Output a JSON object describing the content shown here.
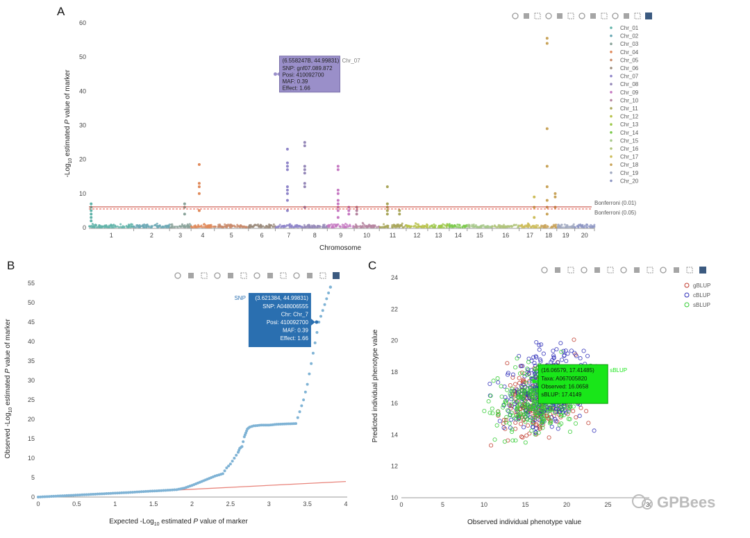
{
  "toolbar_icons": [
    "camera-icon",
    "zoom-icon",
    "pan-icon",
    "box-select-icon",
    "lasso-icon",
    "zoom-in-icon",
    "zoom-out-icon",
    "autoscale-icon",
    "home-icon",
    "spike-lines-icon",
    "hover-closest-icon",
    "hover-compare-icon",
    "plotly-logo-icon"
  ],
  "watermark": "GPBees",
  "colors": {
    "bonferroni_001": "#c0392b",
    "bonferroni_005": "#e74c3c",
    "tooltip_A": "#9a8fc9",
    "tooltip_B": "#2a6fb0",
    "tooltip_C": "#19e619",
    "qq_points": "#7fb3d5",
    "qq_line": "#e8837a"
  },
  "chart_data": [
    {
      "panel": "A",
      "type": "scatter",
      "subtype": "manhattan",
      "ylabel_prefix": "-Log",
      "ylabel_sub": "10",
      "ylabel_suffix": " estimated ",
      "ylabel_italic": "P",
      "ylabel_end": " value of marker",
      "xlabel": "Chromosome",
      "ylim": [
        0,
        60
      ],
      "yticks": [
        "0",
        "10",
        "20",
        "30",
        "40",
        "50",
        "60"
      ],
      "chromosomes": [
        "1",
        "2",
        "3",
        "4",
        "5",
        "6",
        "7",
        "8",
        "9",
        "10",
        "11",
        "12",
        "13",
        "14",
        "15",
        "16",
        "17",
        "18",
        "19",
        "20"
      ],
      "legend": [
        "Chr_01",
        "Chr_02",
        "Chr_03",
        "Chr_04",
        "Chr_05",
        "Chr_06",
        "Chr_07",
        "Chr_08",
        "Chr_09",
        "Chr_10",
        "Chr_11",
        "Chr_12",
        "Chr_13",
        "Chr_14",
        "Chr_15",
        "Chr_16",
        "Chr_17",
        "Chr_18",
        "Chr_19",
        "Chr_20"
      ],
      "legend_colors": [
        "#5fb3a9",
        "#6aa8b4",
        "#8aa39a",
        "#e0895a",
        "#c98a6a",
        "#9a8a7a",
        "#8f85c9",
        "#9588b8",
        "#c679c2",
        "#b585a0",
        "#a9a65a",
        "#b8c24a",
        "#9dc84a",
        "#7ac94a",
        "#a6c88a",
        "#b0c47a",
        "#cdbd5a",
        "#c9a45a",
        "#a0a9c0",
        "#8f97c4"
      ],
      "chr_widths": [
        1.25,
        1.0,
        0.6,
        0.65,
        0.95,
        0.75,
        0.75,
        0.7,
        0.75,
        0.7,
        0.75,
        0.6,
        0.6,
        0.5,
        0.7,
        0.75,
        0.6,
        0.45,
        0.5,
        0.55
      ],
      "significant_points": [
        {
          "chr": "1",
          "pos": 0.05,
          "values": [
            2,
            3,
            4,
            5,
            6,
            7
          ]
        },
        {
          "chr": "3",
          "pos": 0.7,
          "values": [
            4,
            6,
            7
          ]
        },
        {
          "chr": "4",
          "pos": 0.35,
          "values": [
            5,
            10,
            12,
            13,
            18.5
          ]
        },
        {
          "chr": "7",
          "pos": 0.45,
          "values": [
            5,
            8,
            10,
            11,
            12,
            17,
            18,
            19,
            23
          ]
        },
        {
          "chr": "8",
          "pos": 0.1,
          "values": [
            6,
            12,
            13,
            16,
            17,
            18,
            24,
            25
          ]
        },
        {
          "chr": "9",
          "pos": 0.4,
          "values": [
            3,
            5,
            6,
            7,
            8,
            10,
            11,
            17,
            18
          ]
        },
        {
          "chr": "9",
          "pos": 0.8,
          "values": [
            4,
            5,
            6
          ]
        },
        {
          "chr": "10",
          "pos": 0.1,
          "values": [
            4,
            5,
            6
          ]
        },
        {
          "chr": "11",
          "pos": 0.3,
          "values": [
            4,
            5,
            6,
            7,
            12
          ]
        },
        {
          "chr": "11",
          "pos": 0.75,
          "values": [
            4,
            5
          ]
        },
        {
          "chr": "17",
          "pos": 0.7,
          "values": [
            3,
            6,
            9
          ]
        },
        {
          "chr": "18",
          "pos": 0.4,
          "values": [
            4,
            6,
            8,
            12,
            18,
            29,
            54,
            55.5
          ]
        },
        {
          "chr": "18",
          "pos": 0.9,
          "values": [
            6,
            9,
            10
          ]
        }
      ],
      "thresholds": [
        {
          "label": "Bonferroni (0.01)",
          "value": 6.1
        },
        {
          "label": "Bonferroni (0.05)",
          "value": 5.5
        }
      ],
      "tooltip": {
        "header": "(6.558247B, 44.99831)",
        "series": "Chr_07",
        "lines": [
          "SNP:  gnf07.089.872",
          "Posi:  410092700",
          "MAF:  0.39",
          "Effect:  1.66"
        ],
        "point": {
          "x_chr": "7",
          "x_pos": 0.0,
          "y": 45
        }
      }
    },
    {
      "panel": "B",
      "type": "scatter",
      "subtype": "qq",
      "xlabel_prefix": "Expected -Log",
      "xlabel_sub": "10",
      "xlabel_mid": " estimated ",
      "xlabel_italic": "P",
      "xlabel_end": " value of marker",
      "ylabel_prefix": "Observed -Log",
      "ylabel_sub": "10",
      "ylabel_mid": " estimated ",
      "ylabel_italic": "P",
      "ylabel_end": " value of marker",
      "xlim": [
        0,
        4
      ],
      "ylim": [
        0,
        55
      ],
      "xticks": [
        "0",
        "0.5",
        "1",
        "1.5",
        "2",
        "2.5",
        "3",
        "3.5",
        "4"
      ],
      "yticks": [
        "0",
        "5",
        "10",
        "15",
        "20",
        "25",
        "30",
        "35",
        "40",
        "45",
        "50",
        "55"
      ],
      "series": [
        {
          "name": "SNP",
          "points": [
            [
              0,
              0
            ],
            [
              0.2,
              0.2
            ],
            [
              0.4,
              0.4
            ],
            [
              0.6,
              0.6
            ],
            [
              0.8,
              0.8
            ],
            [
              1.0,
              1.0
            ],
            [
              1.2,
              1.2
            ],
            [
              1.4,
              1.45
            ],
            [
              1.6,
              1.65
            ],
            [
              1.8,
              1.9
            ],
            [
              1.9,
              2.3
            ],
            [
              2.0,
              3.0
            ],
            [
              2.1,
              3.8
            ],
            [
              2.2,
              4.6
            ],
            [
              2.3,
              5.4
            ],
            [
              2.4,
              6.0
            ],
            [
              2.45,
              7.5
            ],
            [
              2.5,
              8.5
            ],
            [
              2.55,
              10
            ],
            [
              2.6,
              11.5
            ],
            [
              2.62,
              12.5
            ],
            [
              2.65,
              13
            ],
            [
              2.68,
              15.5
            ],
            [
              2.7,
              16.5
            ],
            [
              2.72,
              17.5
            ],
            [
              2.75,
              18
            ],
            [
              2.8,
              18.3
            ],
            [
              2.9,
              18.5
            ],
            [
              3.0,
              18.5
            ],
            [
              3.1,
              18.7
            ],
            [
              3.2,
              18.8
            ],
            [
              3.35,
              18.9
            ],
            [
              3.45,
              25
            ],
            [
              3.5,
              29
            ],
            [
              3.65,
              45
            ],
            [
              3.8,
              54
            ]
          ]
        },
        {
          "name": "Expected",
          "points": [
            [
              0,
              0
            ],
            [
              4,
              4
            ]
          ]
        }
      ],
      "tooltip": {
        "series": "SNP",
        "header": "(3.621384, 44.99831)",
        "lines": [
          "SNP:  A048006555",
          "Chr:  Chr_7",
          "Posi:  410092700",
          "MAF:  0.39",
          "Effect:  1.66"
        ],
        "point": [
          3.62,
          45
        ]
      }
    },
    {
      "panel": "C",
      "type": "scatter",
      "xlabel": "Observed individual phenotype value",
      "ylabel": "Predicted individual phenotype value",
      "xlim": [
        0,
        30
      ],
      "ylim": [
        10,
        24
      ],
      "xticks": [
        "0",
        "5",
        "10",
        "15",
        "20",
        "25",
        "30"
      ],
      "yticks": [
        "10",
        "12",
        "14",
        "16",
        "18",
        "20",
        "22",
        "24"
      ],
      "series": [
        {
          "name": "gBLUP",
          "color": "#c0392b",
          "center": [
            17,
            16.2
          ],
          "spread": [
            5,
            2.2
          ],
          "count": 260
        },
        {
          "name": "cBLUP",
          "color": "#2d2db8",
          "center": [
            17.5,
            16.8
          ],
          "spread": [
            5,
            2.3
          ],
          "count": 420
        },
        {
          "name": "sBLUP",
          "color": "#33cc33",
          "center": [
            16.5,
            16.3
          ],
          "spread": [
            5,
            2.0
          ],
          "count": 320
        }
      ],
      "tooltip": {
        "header": "(16.06579, 17.41485)",
        "series": "sBLUP",
        "lines": [
          "Taxa:  A067005820",
          "Observed:  16.0658",
          "sBLUP:  17.4149"
        ],
        "point": [
          16.07,
          17.41
        ]
      }
    }
  ],
  "panel_labels": [
    "A",
    "B",
    "C"
  ]
}
